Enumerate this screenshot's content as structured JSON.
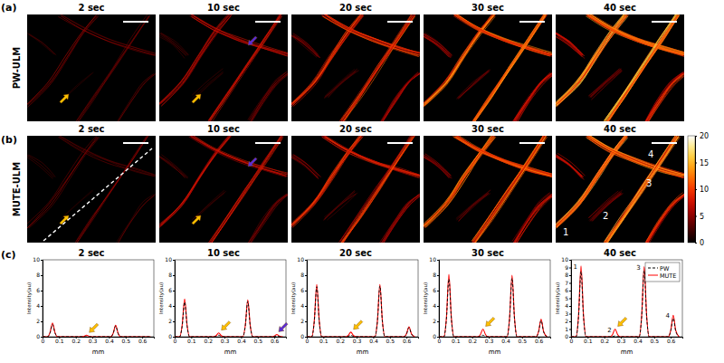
{
  "figure": {
    "panel_labels": [
      "(a)",
      "(b)",
      "(c)"
    ],
    "row_labels": [
      "PW-ULM",
      "MUTE-ULM"
    ],
    "times": [
      "2 sec",
      "10 sec",
      "20 sec",
      "30 sec",
      "40 sec"
    ],
    "vessel_labels": [
      "1",
      "2",
      "3",
      "4"
    ],
    "colorbar": {
      "range": [
        0,
        20
      ],
      "ticks": [
        0,
        5,
        10,
        15,
        20
      ]
    }
  },
  "chart_data": [
    {
      "type": "line",
      "title": "2 sec",
      "x_label": "mm",
      "y_label": "Intensity(au)",
      "x": [
        0,
        0.03,
        0.045,
        0.06,
        0.075,
        0.09,
        0.2,
        0.235,
        0.25,
        0.265,
        0.28,
        0.295,
        0.38,
        0.41,
        0.425,
        0.44,
        0.455,
        0.47,
        0.56,
        0.585,
        0.6,
        0.615,
        0.63,
        0.65
      ],
      "xlim": [
        0,
        0.67
      ],
      "xticks": [
        0,
        0.1,
        0.2,
        0.3,
        0.4,
        0.5,
        0.6
      ],
      "ylim": [
        0,
        10
      ],
      "yticks": [
        0,
        2,
        4,
        6,
        8,
        10
      ],
      "series": [
        {
          "color": "#000000",
          "line_style": "dashed",
          "values": [
            0,
            0,
            0.48,
            1.6,
            0.48,
            0,
            0,
            0,
            0,
            0,
            0,
            0,
            0,
            0,
            0.42,
            1.4,
            0.42,
            0,
            0,
            0,
            0,
            0,
            0,
            0
          ]
        },
        {
          "color": "#ff0000",
          "line_style": "solid",
          "values": [
            0,
            0,
            0.54,
            1.8,
            0.54,
            0,
            0,
            0,
            0.06,
            0.2,
            0.06,
            0,
            0,
            0,
            0.45,
            1.5,
            0.45,
            0,
            0,
            0,
            0,
            0,
            0,
            0
          ]
        }
      ]
    },
    {
      "type": "line",
      "title": "10 sec",
      "x_label": "mm",
      "y_label": "Intensity(au)",
      "x": [
        0,
        0.03,
        0.045,
        0.06,
        0.075,
        0.09,
        0.2,
        0.235,
        0.25,
        0.265,
        0.28,
        0.295,
        0.38,
        0.41,
        0.425,
        0.44,
        0.455,
        0.47,
        0.56,
        0.585,
        0.6,
        0.615,
        0.63,
        0.65
      ],
      "xlim": [
        0,
        0.67
      ],
      "xticks": [
        0,
        0.1,
        0.2,
        0.3,
        0.4,
        0.5,
        0.6
      ],
      "ylim": [
        0,
        10
      ],
      "yticks": [
        0,
        2,
        4,
        6,
        8,
        10
      ],
      "series": [
        {
          "color": "#000000",
          "line_style": "dashed",
          "values": [
            0,
            0,
            1.35,
            4.5,
            1.35,
            0,
            0,
            0,
            0.06,
            0.2,
            0.06,
            0,
            0,
            0,
            1.38,
            4.6,
            1.38,
            0,
            0,
            0,
            0.03,
            0.1,
            0.03,
            0
          ]
        },
        {
          "color": "#ff0000",
          "line_style": "solid",
          "values": [
            0,
            0,
            1.47,
            4.9,
            1.47,
            0,
            0,
            0,
            0.15,
            0.5,
            0.15,
            0,
            0,
            0,
            1.44,
            4.8,
            1.44,
            0,
            0,
            0,
            0.09,
            0.3,
            0.09,
            0
          ]
        }
      ]
    },
    {
      "type": "line",
      "title": "20 sec",
      "x_label": "mm",
      "y_label": "Intensity(au)",
      "x": [
        0,
        0.03,
        0.045,
        0.06,
        0.075,
        0.09,
        0.2,
        0.235,
        0.25,
        0.265,
        0.28,
        0.295,
        0.38,
        0.41,
        0.425,
        0.44,
        0.455,
        0.47,
        0.56,
        0.585,
        0.6,
        0.615,
        0.63,
        0.65
      ],
      "xlim": [
        0,
        0.67
      ],
      "xticks": [
        0,
        0.1,
        0.2,
        0.3,
        0.4,
        0.5,
        0.6
      ],
      "ylim": [
        0,
        10
      ],
      "yticks": [
        0,
        2,
        4,
        6,
        8,
        10
      ],
      "series": [
        {
          "color": "#000000",
          "line_style": "dashed",
          "values": [
            0,
            0,
            1.95,
            6.5,
            1.95,
            0,
            0,
            0,
            0.06,
            0.2,
            0.06,
            0,
            0,
            0,
            1.98,
            6.6,
            1.98,
            0,
            0,
            0,
            0.36,
            1.2,
            0.36,
            0
          ]
        },
        {
          "color": "#ff0000",
          "line_style": "solid",
          "values": [
            0,
            0,
            2.04,
            6.8,
            2.04,
            0,
            0,
            0,
            0.18,
            0.6,
            0.18,
            0,
            0,
            0,
            2.04,
            6.8,
            2.04,
            0,
            0,
            0,
            0.39,
            1.3,
            0.39,
            0
          ]
        }
      ]
    },
    {
      "type": "line",
      "title": "30 sec",
      "x_label": "mm",
      "y_label": "Intensity(au)",
      "x": [
        0,
        0.03,
        0.045,
        0.06,
        0.075,
        0.09,
        0.2,
        0.235,
        0.25,
        0.265,
        0.28,
        0.295,
        0.38,
        0.41,
        0.425,
        0.44,
        0.455,
        0.47,
        0.56,
        0.585,
        0.6,
        0.615,
        0.63,
        0.65
      ],
      "xlim": [
        0,
        0.67
      ],
      "xticks": [
        0,
        0.1,
        0.2,
        0.3,
        0.4,
        0.5,
        0.6
      ],
      "ylim": [
        0,
        10
      ],
      "yticks": [
        0,
        2,
        4,
        6,
        8,
        10
      ],
      "series": [
        {
          "color": "#000000",
          "line_style": "dashed",
          "values": [
            0,
            0,
            2.25,
            7.5,
            2.25,
            0,
            0,
            0,
            0.06,
            0.2,
            0.06,
            0,
            0,
            0,
            2.28,
            7.6,
            2.28,
            0,
            0,
            0,
            0.63,
            2.1,
            0.63,
            0
          ]
        },
        {
          "color": "#ff0000",
          "line_style": "solid",
          "values": [
            0,
            0,
            2.43,
            8.1,
            2.43,
            0,
            0,
            0,
            0.3,
            1.0,
            0.3,
            0,
            0,
            0,
            2.4,
            8.0,
            2.4,
            0,
            0,
            0,
            0.69,
            2.3,
            0.69,
            0
          ]
        }
      ]
    },
    {
      "type": "line",
      "title": "40 sec",
      "x_label": "mm",
      "y_label": "Intensity(au)",
      "x": [
        0,
        0.03,
        0.045,
        0.06,
        0.075,
        0.09,
        0.2,
        0.235,
        0.25,
        0.265,
        0.28,
        0.295,
        0.38,
        0.41,
        0.425,
        0.44,
        0.455,
        0.47,
        0.56,
        0.585,
        0.6,
        0.615,
        0.63,
        0.65
      ],
      "xlim": [
        0,
        0.67
      ],
      "xticks": [
        0,
        0.1,
        0.2,
        0.3,
        0.4,
        0.5,
        0.6
      ],
      "ylim": [
        0,
        10
      ],
      "yticks": [
        0,
        1,
        2,
        3,
        4,
        5,
        6,
        7,
        8,
        9,
        10
      ],
      "legend": "upper right",
      "annotations": [
        "1",
        "2",
        "3",
        "4"
      ],
      "series": [
        {
          "name": "PW",
          "color": "#000000",
          "line_style": "dashed",
          "values": [
            0,
            0,
            2.55,
            8.5,
            2.55,
            0,
            0,
            0,
            0.03,
            0.1,
            0.03,
            0,
            0,
            0,
            2.58,
            8.6,
            2.58,
            0,
            0,
            0,
            0.72,
            2.4,
            0.72,
            0
          ]
        },
        {
          "name": "MUTE",
          "color": "#ff0000",
          "line_style": "solid",
          "values": [
            0,
            0,
            2.76,
            9.2,
            2.76,
            0,
            0,
            0,
            0.3,
            1.0,
            0.3,
            0,
            0,
            0,
            2.73,
            9.1,
            2.73,
            0,
            0,
            0,
            0.84,
            2.8,
            0.84,
            0
          ]
        }
      ]
    }
  ]
}
